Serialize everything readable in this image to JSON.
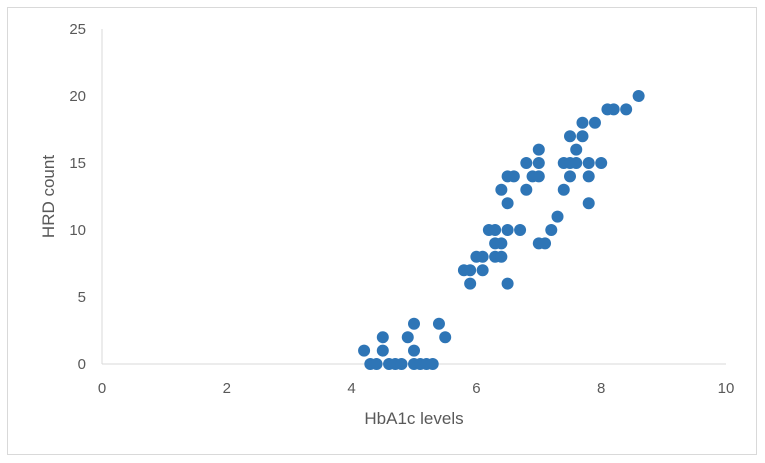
{
  "chart_data": {
    "type": "scatter",
    "title": "",
    "xlabel": "HbA1c levels",
    "ylabel": "HRD count",
    "xlim": [
      0,
      10
    ],
    "ylim": [
      0,
      25
    ],
    "xticks": [
      0,
      2,
      4,
      6,
      8,
      10
    ],
    "yticks": [
      0,
      5,
      10,
      15,
      20,
      25
    ],
    "grid": false,
    "marker_color": "#2e75b6",
    "points": [
      [
        4.2,
        1
      ],
      [
        4.3,
        0
      ],
      [
        4.4,
        0
      ],
      [
        4.5,
        2
      ],
      [
        4.5,
        1
      ],
      [
        4.6,
        0
      ],
      [
        4.7,
        0
      ],
      [
        4.8,
        0
      ],
      [
        4.9,
        2
      ],
      [
        5.0,
        3
      ],
      [
        5.0,
        1
      ],
      [
        5.0,
        0
      ],
      [
        5.1,
        0
      ],
      [
        5.2,
        0
      ],
      [
        5.3,
        0
      ],
      [
        5.4,
        3
      ],
      [
        5.5,
        2
      ],
      [
        5.8,
        7
      ],
      [
        5.9,
        7
      ],
      [
        5.9,
        6
      ],
      [
        6.0,
        8
      ],
      [
        6.1,
        8
      ],
      [
        6.1,
        7
      ],
      [
        6.2,
        10
      ],
      [
        6.3,
        10
      ],
      [
        6.3,
        9
      ],
      [
        6.3,
        8
      ],
      [
        6.4,
        13
      ],
      [
        6.4,
        9
      ],
      [
        6.4,
        8
      ],
      [
        6.5,
        14
      ],
      [
        6.5,
        12
      ],
      [
        6.5,
        10
      ],
      [
        6.5,
        6
      ],
      [
        6.6,
        14
      ],
      [
        6.7,
        10
      ],
      [
        6.8,
        15
      ],
      [
        6.8,
        13
      ],
      [
        6.9,
        14
      ],
      [
        7.0,
        16
      ],
      [
        7.0,
        15
      ],
      [
        7.0,
        14
      ],
      [
        7.0,
        9
      ],
      [
        7.1,
        9
      ],
      [
        7.2,
        10
      ],
      [
        7.3,
        11
      ],
      [
        7.4,
        15
      ],
      [
        7.4,
        13
      ],
      [
        7.5,
        17
      ],
      [
        7.5,
        15
      ],
      [
        7.5,
        14
      ],
      [
        7.6,
        16
      ],
      [
        7.6,
        15
      ],
      [
        7.7,
        18
      ],
      [
        7.7,
        17
      ],
      [
        7.8,
        15
      ],
      [
        7.8,
        14
      ],
      [
        7.8,
        12
      ],
      [
        7.9,
        18
      ],
      [
        8.0,
        15
      ],
      [
        8.1,
        19
      ],
      [
        8.2,
        19
      ],
      [
        8.4,
        19
      ],
      [
        8.6,
        20
      ]
    ]
  }
}
